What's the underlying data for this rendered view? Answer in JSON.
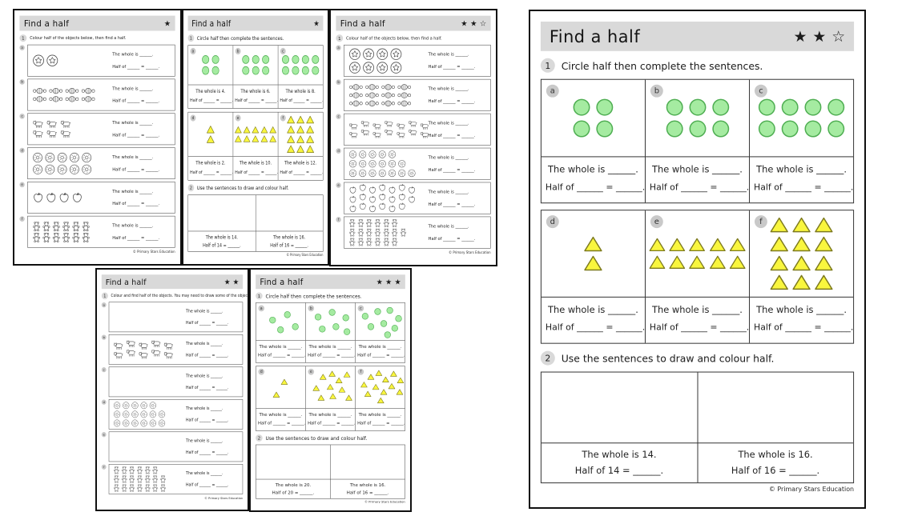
{
  "colors": {
    "green_fill": "#a5eba1",
    "green_stroke": "#4fae52",
    "yellow_fill": "#f9f63e",
    "yellow_stroke": "#7d7a1e",
    "header_gray": "#d9d9d9",
    "badge_gray": "#c9c9c9",
    "outline_stroke": "#4d4d4d"
  },
  "sheets": [
    {
      "id": "thumb-colour-1star",
      "layout": "rows",
      "title": "Find a half",
      "stars_filled": 1,
      "stars_outline": 0,
      "q1_num": "1",
      "q1": "Colour half of the objects below, then find a half.",
      "rows": [
        {
          "label": "a",
          "icon": "star-badge",
          "lines": [
            2
          ],
          "whole": "The whole is ______.",
          "half": "Half of ______ = ______."
        },
        {
          "label": "b",
          "icon": "sweet",
          "lines": [
            4,
            4
          ],
          "whole": "The whole is ______.",
          "half": "Half of ______ = ______."
        },
        {
          "label": "c",
          "icon": "pig",
          "lines": [
            3,
            3
          ],
          "whole": "The whole is ______.",
          "half": "Half of ______ = ______."
        },
        {
          "label": "d",
          "icon": "donut",
          "lines": [
            5,
            5
          ],
          "whole": "The whole is ______.",
          "half": "Half of ______ = ______."
        },
        {
          "label": "e",
          "icon": "apple",
          "lines": [
            4
          ],
          "whole": "The whole is ______.",
          "half": "Half of ______ = ______."
        },
        {
          "label": "f",
          "icon": "teddy",
          "lines": [
            6,
            6
          ],
          "whole": "The whole is ______.",
          "half": "Half of ______ = ______."
        }
      ],
      "footer": "© Primary Stars Education"
    },
    {
      "id": "thumb-circle-1star",
      "layout": "grid",
      "title": "Find a half",
      "stars_filled": 1,
      "stars_outline": 0,
      "q1_num": "1",
      "q1": "Circle half then complete the sentences.",
      "q2_num": "2",
      "q2": "Use the sentences to draw and colour half.",
      "cells": [
        {
          "label": "a",
          "icon": "green-circle",
          "lines": [
            2,
            2
          ],
          "scatter": false,
          "whole": "The whole is 4.",
          "half": "Half of ______ = ______."
        },
        {
          "label": "b",
          "icon": "green-circle",
          "lines": [
            3,
            3
          ],
          "scatter": false,
          "whole": "The whole is 6.",
          "half": "Half of ______ = ______."
        },
        {
          "label": "c",
          "icon": "green-circle",
          "lines": [
            4,
            4
          ],
          "scatter": false,
          "whole": "The whole is 8.",
          "half": "Half of ______ = ______."
        },
        {
          "label": "d",
          "icon": "yellow-triangle",
          "lines": [
            1,
            1
          ],
          "scatter": false,
          "whole": "The whole is 2.",
          "half": "Half of ______ = ______."
        },
        {
          "label": "e",
          "icon": "yellow-triangle",
          "lines": [
            5,
            5
          ],
          "scatter": false,
          "whole": "The whole is 10.",
          "half": "Half of ______ = ______."
        },
        {
          "label": "f",
          "icon": "yellow-triangle",
          "lines": [
            3,
            3,
            3,
            3
          ],
          "scatter": false,
          "whole": "The whole is 12.",
          "half": "Half of ______ = ______."
        }
      ],
      "draw_boxes": [
        {
          "whole": "The whole is 14.",
          "half": "Half of 14 = ______."
        },
        {
          "whole": "The whole is 16.",
          "half": "Half of 16 = ______."
        }
      ],
      "footer": "© Primary Stars Education"
    },
    {
      "id": "thumb-colour-2star",
      "layout": "rows",
      "title": "Find a half",
      "stars_filled": 2,
      "stars_outline": 1,
      "q1_num": "1",
      "q1": "Colour half of the objects below, then find a half.",
      "rows": [
        {
          "label": "a",
          "icon": "star-badge",
          "lines": [
            4,
            4
          ],
          "whole": "The whole is ______.",
          "half": "Half of ______ = ______."
        },
        {
          "label": "b",
          "icon": "sweet",
          "lines": [
            4,
            4,
            4
          ],
          "whole": "The whole is ______.",
          "half": "Half of ______ = ______."
        },
        {
          "label": "c",
          "icon": "pig",
          "lines": [
            7,
            7
          ],
          "zigzag": true,
          "whole": "The whole is ______.",
          "half": "Half of ______ = ______."
        },
        {
          "label": "d",
          "icon": "donut",
          "lines": [
            5,
            6,
            7
          ],
          "whole": "The whole is ______.",
          "half": "Half of ______ = ______."
        },
        {
          "label": "e",
          "icon": "apple",
          "lines": [
            7,
            7,
            6
          ],
          "zigzag": true,
          "whole": "The whole is ______.",
          "half": "Half of ______ = ______."
        },
        {
          "label": "f",
          "icon": "teddy",
          "lines": [
            6,
            7,
            6
          ],
          "whole": "The whole is ______.",
          "half": "Half of ______ = ______."
        }
      ],
      "footer": "© Primary Stars Education"
    },
    {
      "id": "thumb-draw-2star",
      "layout": "rows",
      "title": "Find a half",
      "stars_filled": 2,
      "stars_outline": 0,
      "q1_num": "1",
      "q1": "Colour and find half of the objects. You may need to draw some of the objects.",
      "rows": [
        {
          "label": "a",
          "icon": null,
          "lines": [],
          "whole": "The whole is ______.",
          "half": "Half of ______ = ______."
        },
        {
          "label": "b",
          "icon": "pig",
          "lines": [
            5,
            5
          ],
          "zigzag": true,
          "whole": "The whole is ______.",
          "half": "Half of ______ = ______."
        },
        {
          "label": "c",
          "icon": null,
          "lines": [],
          "whole": "The whole is ______.",
          "half": "Half of ______ = ______."
        },
        {
          "label": "d",
          "icon": "donut",
          "lines": [
            5,
            6,
            6
          ],
          "whole": "The whole is ______.",
          "half": "Half of ______ = ______."
        },
        {
          "label": "e",
          "icon": null,
          "lines": [],
          "whole": "The whole is ______.",
          "half": "Half of ______ = ______."
        },
        {
          "label": "f",
          "icon": "teddy",
          "lines": [
            6,
            7,
            7
          ],
          "whole": "The whole is ______.",
          "half": "Half of ______ = ______."
        }
      ],
      "footer": "© Primary Stars Education"
    },
    {
      "id": "thumb-circle-3star",
      "layout": "grid",
      "title": "Find a half",
      "stars_filled": 3,
      "stars_outline": 0,
      "q1_num": "1",
      "q1": "Circle half then complete the sentences.",
      "q2_num": "2",
      "q2": "Use the sentences to draw and colour half.",
      "cells": [
        {
          "label": "a",
          "icon": "green-circle",
          "lines": [
            2,
            2
          ],
          "scatter": true,
          "whole": "The whole is ______.",
          "half": "Half of ______ = ______."
        },
        {
          "label": "b",
          "icon": "green-circle",
          "lines": [
            3,
            3
          ],
          "scatter": true,
          "whole": "The whole is ______.",
          "half": "Half of ______ = ______."
        },
        {
          "label": "c",
          "icon": "green-circle",
          "lines": [
            4,
            4
          ],
          "scatter": true,
          "whole": "The whole is ______.",
          "half": "Half of ______ = ______."
        },
        {
          "label": "d",
          "icon": "yellow-triangle",
          "lines": [
            1,
            1
          ],
          "scatter": true,
          "whole": "The whole is ______.",
          "half": "Half of ______ = ______."
        },
        {
          "label": "e",
          "icon": "yellow-triangle",
          "lines": [
            5,
            5
          ],
          "scatter": true,
          "whole": "The whole is ______.",
          "half": "Half of ______ = ______."
        },
        {
          "label": "f",
          "icon": "yellow-triangle",
          "lines": [
            3,
            3,
            3,
            3
          ],
          "scatter": true,
          "whole": "The whole is ______.",
          "half": "Half of ______ = ______."
        }
      ],
      "draw_boxes": [
        {
          "whole": "The whole is 20.",
          "half": "Half of 20 = ______."
        },
        {
          "whole": "The whole is 16.",
          "half": "Half of 16 = ______."
        }
      ],
      "footer": "© Primary Stars Education"
    },
    {
      "id": "preview-circle-2star-large",
      "layout": "grid",
      "title": "Find a half",
      "stars_filled": 2,
      "stars_outline": 1,
      "q1_num": "1",
      "q1": "Circle half then complete the sentences.",
      "q2_num": "2",
      "q2": "Use the sentences to draw and colour half.",
      "cells": [
        {
          "label": "a",
          "icon": "green-circle",
          "lines": [
            2,
            2
          ],
          "scatter": false,
          "whole": "The whole is ______.",
          "half": "Half of ______ = ______."
        },
        {
          "label": "b",
          "icon": "green-circle",
          "lines": [
            3,
            3
          ],
          "scatter": false,
          "whole": "The whole is ______.",
          "half": "Half of ______ = ______."
        },
        {
          "label": "c",
          "icon": "green-circle",
          "lines": [
            4,
            4
          ],
          "scatter": false,
          "whole": "The whole is ______.",
          "half": "Half of ______ = ______."
        },
        {
          "label": "d",
          "icon": "yellow-triangle",
          "lines": [
            1,
            1
          ],
          "scatter": false,
          "whole": "The whole is ______.",
          "half": "Half of ______ = ______."
        },
        {
          "label": "e",
          "icon": "yellow-triangle",
          "lines": [
            5,
            5
          ],
          "scatter": false,
          "whole": "The whole is ______.",
          "half": "Half of ______ = ______."
        },
        {
          "label": "f",
          "icon": "yellow-triangle",
          "lines": [
            3,
            3,
            3,
            3
          ],
          "scatter": false,
          "whole": "The whole is ______.",
          "half": "Half of ______ = ______."
        }
      ],
      "draw_boxes": [
        {
          "whole": "The whole is 14.",
          "half": "Half of 14 = ______."
        },
        {
          "whole": "The whole is 16.",
          "half": "Half of 16 = ______."
        }
      ],
      "footer": "© Primary Stars Education"
    }
  ]
}
